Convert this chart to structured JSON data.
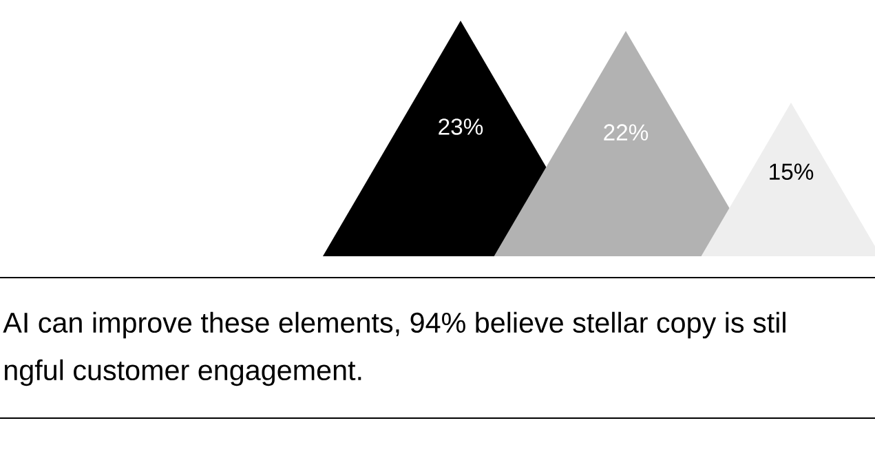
{
  "chart_data": {
    "type": "other",
    "categories": [
      null,
      null,
      null,
      null
    ],
    "values": [
      null,
      23,
      22,
      15
    ],
    "value_labels": [
      null,
      "23%",
      "22%",
      "15%"
    ],
    "colors": [
      null,
      "#000000",
      "#b2b2b2",
      "#eeeeee"
    ],
    "annotations": [
      "AI can improve these elements, 94% believe stellar copy is stil",
      "ngful customer engagement."
    ]
  }
}
